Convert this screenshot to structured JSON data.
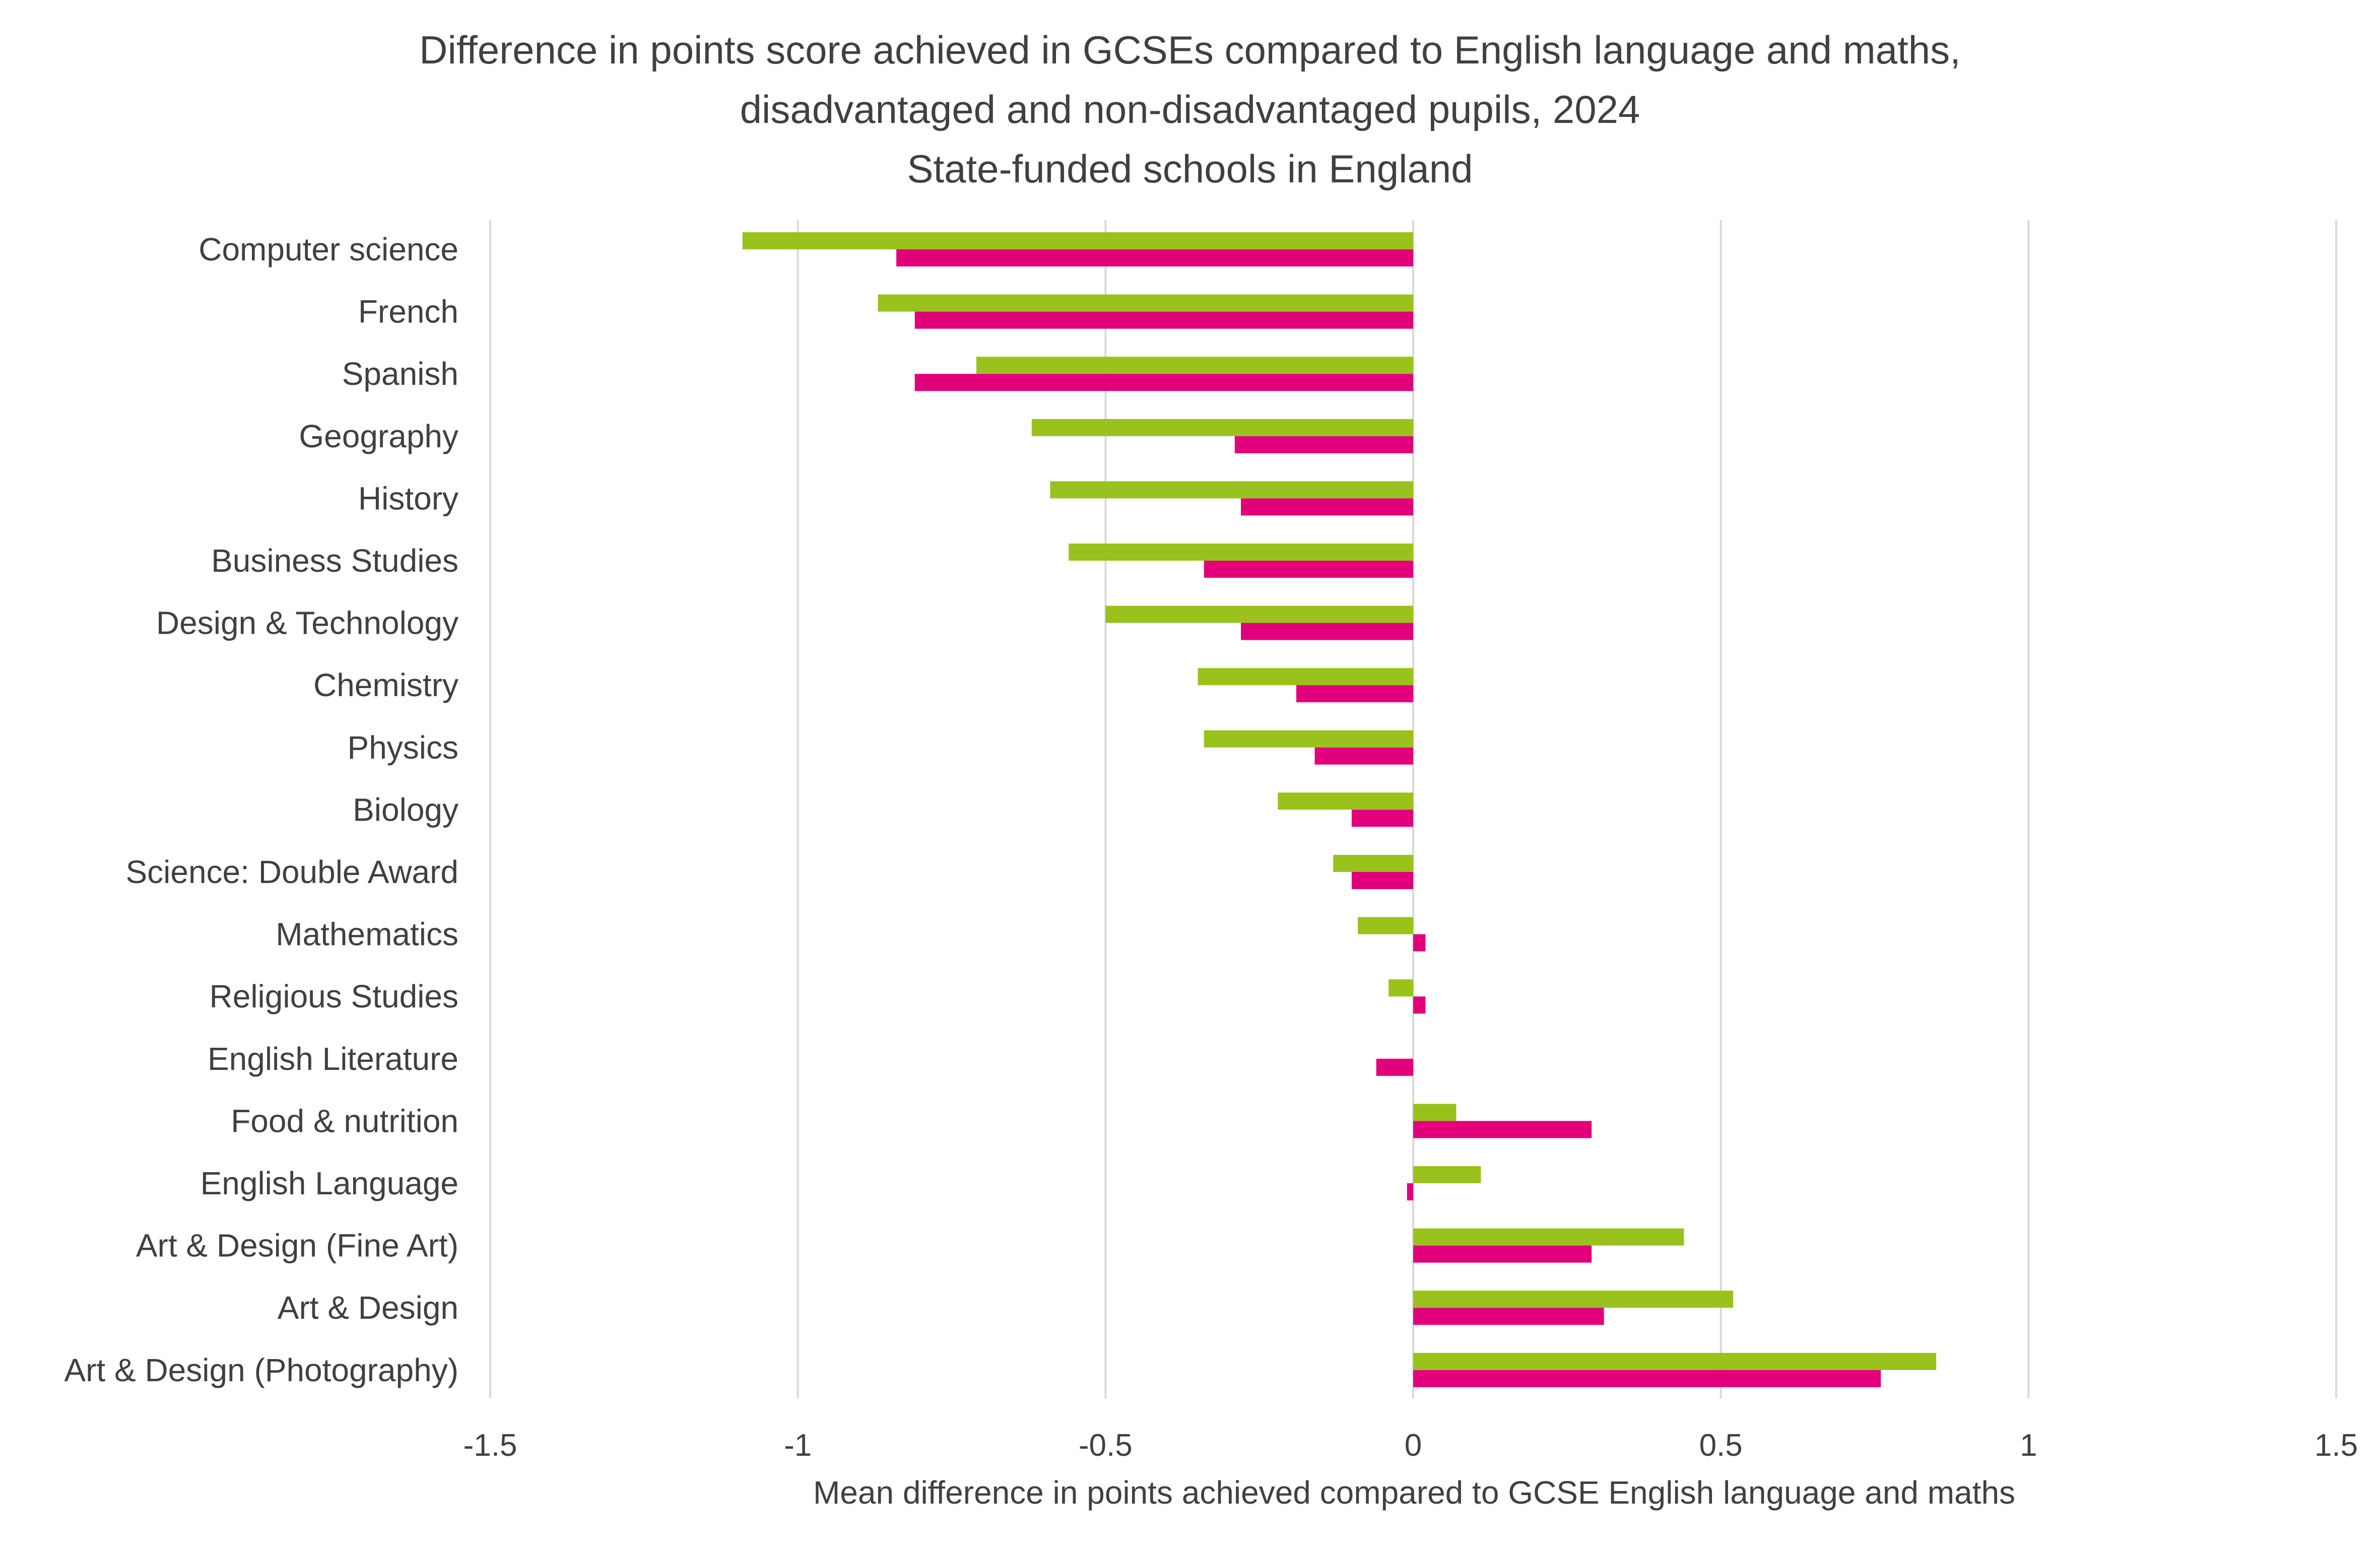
{
  "chart_data": {
    "type": "bar",
    "orientation": "horizontal",
    "title_lines": [
      "Difference in points score achieved in GCSEs compared to English language and maths,",
      "disadvantaged and non-disadvantaged pupils, 2024",
      "State-funded schools in England"
    ],
    "xlabel": "Mean difference in points achieved compared to GCSE English language and maths",
    "ylabel": "",
    "xlim": [
      -1.5,
      1.5
    ],
    "xticks": [
      -1.5,
      -1,
      -0.5,
      0,
      0.5,
      1,
      1.5
    ],
    "xtick_labels": [
      "-1.5",
      "-1",
      "-0.5",
      "0",
      "0.5",
      "1",
      "1.5"
    ],
    "grid": "vertical",
    "legend": "none",
    "categories": [
      "Computer science",
      "French",
      "Spanish",
      "Geography",
      "History",
      "Business Studies",
      "Design & Technology",
      "Chemistry",
      "Physics",
      "Biology",
      "Science: Double Award",
      "Mathematics",
      "Religious Studies",
      "English Literature",
      "Food & nutrition",
      "English Language",
      "Art & Design (Fine Art)",
      "Art & Design",
      "Art & Design (Photography)"
    ],
    "series": [
      {
        "color": "#99c21c",
        "values": [
          -1.09,
          -0.87,
          -0.71,
          -0.62,
          -0.59,
          -0.56,
          -0.5,
          -0.35,
          -0.34,
          -0.22,
          -0.13,
          -0.09,
          -0.04,
          0.0,
          0.07,
          0.11,
          0.44,
          0.52,
          0.85
        ]
      },
      {
        "color": "#e2007a",
        "values": [
          -0.84,
          -0.81,
          -0.81,
          -0.29,
          -0.28,
          -0.34,
          -0.28,
          -0.19,
          -0.16,
          -0.1,
          -0.1,
          0.02,
          0.02,
          -0.06,
          0.29,
          -0.01,
          0.29,
          0.31,
          0.76
        ]
      }
    ]
  }
}
